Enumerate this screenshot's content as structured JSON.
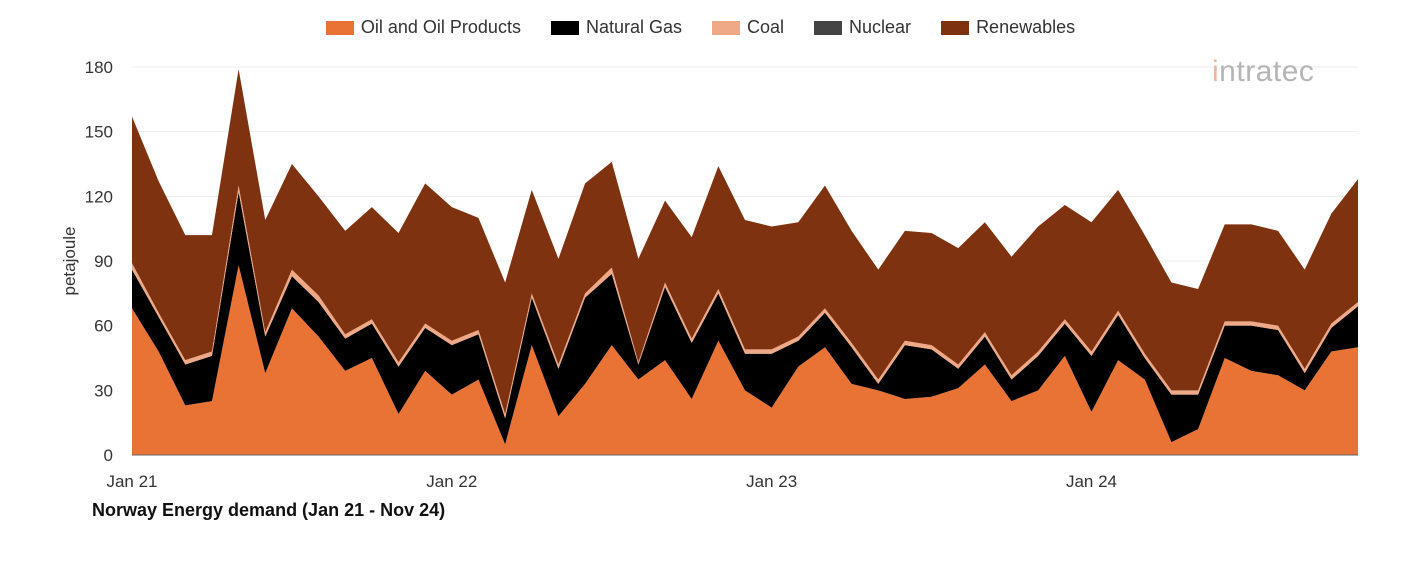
{
  "chart_data": {
    "type": "area",
    "stacked": true,
    "title": "Norway Energy demand (Jan 21 - Nov 24)",
    "xlabel": "",
    "ylabel": "petajoule",
    "ylim": [
      0,
      180
    ],
    "yticks": [
      0,
      30,
      60,
      90,
      120,
      150,
      180
    ],
    "xtick_labels": [
      {
        "index": 0,
        "label": "Jan 21"
      },
      {
        "index": 12,
        "label": "Jan 22"
      },
      {
        "index": 24,
        "label": "Jan 23"
      },
      {
        "index": 36,
        "label": "Jan 24"
      }
    ],
    "legend_position": "top-center",
    "grid": true,
    "x": [
      "Jan 21",
      "Feb 21",
      "Mar 21",
      "Apr 21",
      "May 21",
      "Jun 21",
      "Jul 21",
      "Aug 21",
      "Sep 21",
      "Oct 21",
      "Nov 21",
      "Dec 21",
      "Jan 22",
      "Feb 22",
      "Mar 22",
      "Apr 22",
      "May 22",
      "Jun 22",
      "Jul 22",
      "Aug 22",
      "Sep 22",
      "Oct 22",
      "Nov 22",
      "Dec 22",
      "Jan 23",
      "Feb 23",
      "Mar 23",
      "Apr 23",
      "May 23",
      "Jun 23",
      "Jul 23",
      "Aug 23",
      "Sep 23",
      "Oct 23",
      "Nov 23",
      "Dec 23",
      "Jan 24",
      "Feb 24",
      "Mar 24",
      "Apr 24",
      "May 24",
      "Jun 24",
      "Jul 24",
      "Aug 24",
      "Sep 24",
      "Oct 24",
      "Nov 24"
    ],
    "series": [
      {
        "name": "Oil and Oil Products",
        "color": "#E87335",
        "values": [
          68,
          48,
          23,
          25,
          88,
          38,
          68,
          55,
          39,
          45,
          19,
          39,
          28,
          35,
          5,
          51,
          18,
          33,
          51,
          35,
          44,
          26,
          53,
          30,
          22,
          41,
          50,
          33,
          30,
          26,
          27,
          31,
          42,
          25,
          30,
          46,
          20,
          44,
          35,
          6,
          12,
          45,
          39,
          37,
          30,
          48,
          50
        ]
      },
      {
        "name": "Natural Gas",
        "color": "#000000",
        "values": [
          18,
          16,
          19,
          21,
          34,
          17,
          15,
          16,
          15,
          16,
          22,
          20,
          23,
          21,
          12,
          22,
          22,
          40,
          33,
          7,
          34,
          26,
          22,
          17,
          25,
          12,
          16,
          17,
          3,
          25,
          22,
          9,
          13,
          10,
          16,
          15,
          26,
          21,
          10,
          22,
          16,
          15,
          21,
          21,
          8,
          11,
          19
        ]
      },
      {
        "name": "Coal",
        "color": "#F0A986",
        "values": [
          3,
          2,
          2,
          2,
          3,
          2,
          3,
          3,
          2,
          2,
          2,
          2,
          2,
          2,
          2,
          2,
          2,
          2,
          3,
          1,
          2,
          2,
          2,
          2,
          2,
          2,
          2,
          2,
          2,
          2,
          2,
          2,
          2,
          2,
          2,
          2,
          2,
          2,
          2,
          2,
          2,
          2,
          2,
          2,
          2,
          2,
          2
        ]
      },
      {
        "name": "Nuclear",
        "color": "#444444",
        "values": [
          0,
          0,
          0,
          0,
          0,
          0,
          0,
          0,
          0,
          0,
          0,
          0,
          0,
          0,
          0,
          0,
          0,
          0,
          0,
          0,
          0,
          0,
          0,
          0,
          0,
          0,
          0,
          0,
          0,
          0,
          0,
          0,
          0,
          0,
          0,
          0,
          0,
          0,
          0,
          0,
          0,
          0,
          0,
          0,
          0,
          0,
          0
        ]
      },
      {
        "name": "Renewables",
        "color": "#7E3210",
        "values": [
          68,
          61,
          58,
          54,
          54,
          52,
          49,
          46,
          48,
          52,
          60,
          65,
          62,
          52,
          61,
          48,
          49,
          51,
          49,
          48,
          38,
          47,
          57,
          60,
          57,
          53,
          57,
          52,
          51,
          51,
          52,
          54,
          51,
          55,
          58,
          53,
          60,
          56,
          55,
          50,
          47,
          45,
          45,
          44,
          46,
          51,
          57
        ]
      }
    ]
  },
  "logo": {
    "mark": "i",
    "text": "ntratec"
  }
}
